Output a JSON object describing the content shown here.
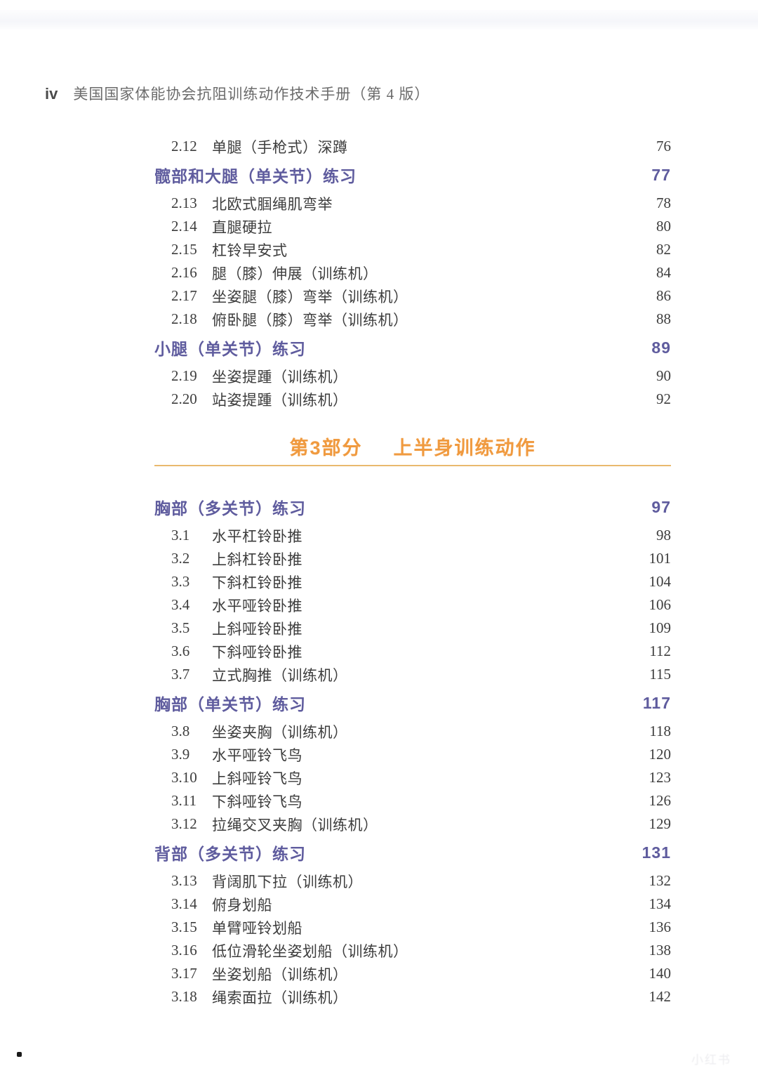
{
  "header": {
    "folio": "iv",
    "book_title": "美国国家体能协会抗阻训练动作技术手册（第 4 版）"
  },
  "colors": {
    "accent_purple": "#5f5c9e",
    "accent_orange": "#f09a3f",
    "rule_orange": "#e9b96e"
  },
  "part_divider": {
    "label": "第3部分",
    "title": "上半身训练动作"
  },
  "watermark_text": "小红书",
  "toc": [
    {
      "type": "entry",
      "num": "2.12",
      "title": "单腿（手枪式）深蹲",
      "page": "76"
    },
    {
      "type": "section",
      "title": "髋部和大腿（单关节）练习",
      "page": "77"
    },
    {
      "type": "entry",
      "num": "2.13",
      "title": "北欧式腘绳肌弯举",
      "page": "78"
    },
    {
      "type": "entry",
      "num": "2.14",
      "title": "直腿硬拉",
      "page": "80"
    },
    {
      "type": "entry",
      "num": "2.15",
      "title": "杠铃早安式",
      "page": "82"
    },
    {
      "type": "entry",
      "num": "2.16",
      "title": "腿（膝）伸展（训练机）",
      "page": "84"
    },
    {
      "type": "entry",
      "num": "2.17",
      "title": "坐姿腿（膝）弯举（训练机）",
      "page": "86"
    },
    {
      "type": "entry",
      "num": "2.18",
      "title": "俯卧腿（膝）弯举（训练机）",
      "page": "88"
    },
    {
      "type": "section",
      "title": "小腿（单关节）练习",
      "page": "89"
    },
    {
      "type": "entry",
      "num": "2.19",
      "title": "坐姿提踵（训练机）",
      "page": "90"
    },
    {
      "type": "entry",
      "num": "2.20",
      "title": "站姿提踵（训练机）",
      "page": "92"
    },
    {
      "type": "part"
    },
    {
      "type": "section",
      "title": "胸部（多关节）练习",
      "page": "97"
    },
    {
      "type": "entry",
      "num": "3.1",
      "title": "水平杠铃卧推",
      "page": "98"
    },
    {
      "type": "entry",
      "num": "3.2",
      "title": "上斜杠铃卧推",
      "page": "101"
    },
    {
      "type": "entry",
      "num": "3.3",
      "title": "下斜杠铃卧推",
      "page": "104"
    },
    {
      "type": "entry",
      "num": "3.4",
      "title": "水平哑铃卧推",
      "page": "106"
    },
    {
      "type": "entry",
      "num": "3.5",
      "title": "上斜哑铃卧推",
      "page": "109"
    },
    {
      "type": "entry",
      "num": "3.6",
      "title": "下斜哑铃卧推",
      "page": "112"
    },
    {
      "type": "entry",
      "num": "3.7",
      "title": "立式胸推（训练机）",
      "page": "115"
    },
    {
      "type": "section",
      "title": "胸部（单关节）练习",
      "page": "117"
    },
    {
      "type": "entry",
      "num": "3.8",
      "title": "坐姿夹胸（训练机）",
      "page": "118"
    },
    {
      "type": "entry",
      "num": "3.9",
      "title": "水平哑铃飞鸟",
      "page": "120"
    },
    {
      "type": "entry",
      "num": "3.10",
      "title": "上斜哑铃飞鸟",
      "page": "123"
    },
    {
      "type": "entry",
      "num": "3.11",
      "title": "下斜哑铃飞鸟",
      "page": "126"
    },
    {
      "type": "entry",
      "num": "3.12",
      "title": "拉绳交叉夹胸（训练机）",
      "page": "129"
    },
    {
      "type": "section",
      "title": "背部（多关节）练习",
      "page": "131"
    },
    {
      "type": "entry",
      "num": "3.13",
      "title": "背阔肌下拉（训练机）",
      "page": "132"
    },
    {
      "type": "entry",
      "num": "3.14",
      "title": "俯身划船",
      "page": "134"
    },
    {
      "type": "entry",
      "num": "3.15",
      "title": "单臂哑铃划船",
      "page": "136"
    },
    {
      "type": "entry",
      "num": "3.16",
      "title": "低位滑轮坐姿划船（训练机）",
      "page": "138"
    },
    {
      "type": "entry",
      "num": "3.17",
      "title": "坐姿划船（训练机）",
      "page": "140"
    },
    {
      "type": "entry",
      "num": "3.18",
      "title": "绳索面拉（训练机）",
      "page": "142"
    }
  ]
}
